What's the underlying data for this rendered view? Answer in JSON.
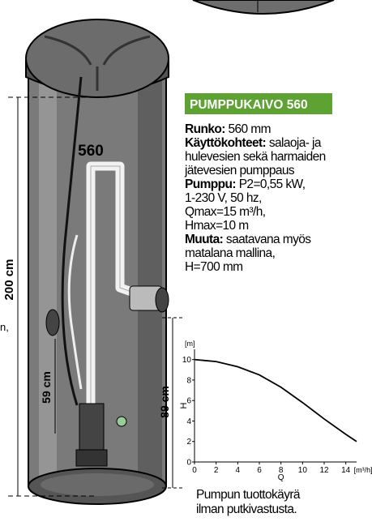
{
  "product_label": "560",
  "dimensions": {
    "total": "200 cm",
    "inlet": "59 cm",
    "outlet": "89 cm"
  },
  "left_fragment": "n,",
  "heading": "PUMPPUKAIVO 560",
  "specs": [
    {
      "label": "Runko:",
      "lines": [
        "560 mm"
      ]
    },
    {
      "label": "Käyttökohteet:",
      "lines": [
        "salaoja- ja",
        "hulevesien sekä harmaiden",
        "jätevesien pumppaus"
      ]
    },
    {
      "label": "Pumppu:",
      "lines": [
        "P2=0,55 kW,",
        "1-230 V, 50 hz,",
        "Qmax=15 m³/h,",
        "Hmax=10 m"
      ]
    },
    {
      "label": "Muuta:",
      "lines": [
        "saatavana myös",
        "matalana mallina,",
        "H=700 mm"
      ]
    }
  ],
  "caption": [
    "Pumpun tuottokäyrä",
    "ilman putkivastusta."
  ],
  "chart_data": {
    "type": "line",
    "y_unit": "[m]",
    "y_label": "H",
    "x_label": "Q",
    "x_unit": "[m³/h]",
    "x": [
      0,
      2,
      4,
      6,
      8,
      10,
      12,
      14,
      15
    ],
    "values": [
      10,
      9.8,
      9.3,
      8.5,
      7.3,
      5.8,
      4.2,
      2.7,
      2
    ],
    "color": "#000000",
    "xlim": [
      0,
      15
    ],
    "ylim": [
      0,
      11
    ],
    "xticks": [
      0,
      2,
      4,
      6,
      8,
      10,
      12,
      14
    ],
    "yticks": [
      0,
      2,
      4,
      6,
      8,
      10
    ]
  }
}
